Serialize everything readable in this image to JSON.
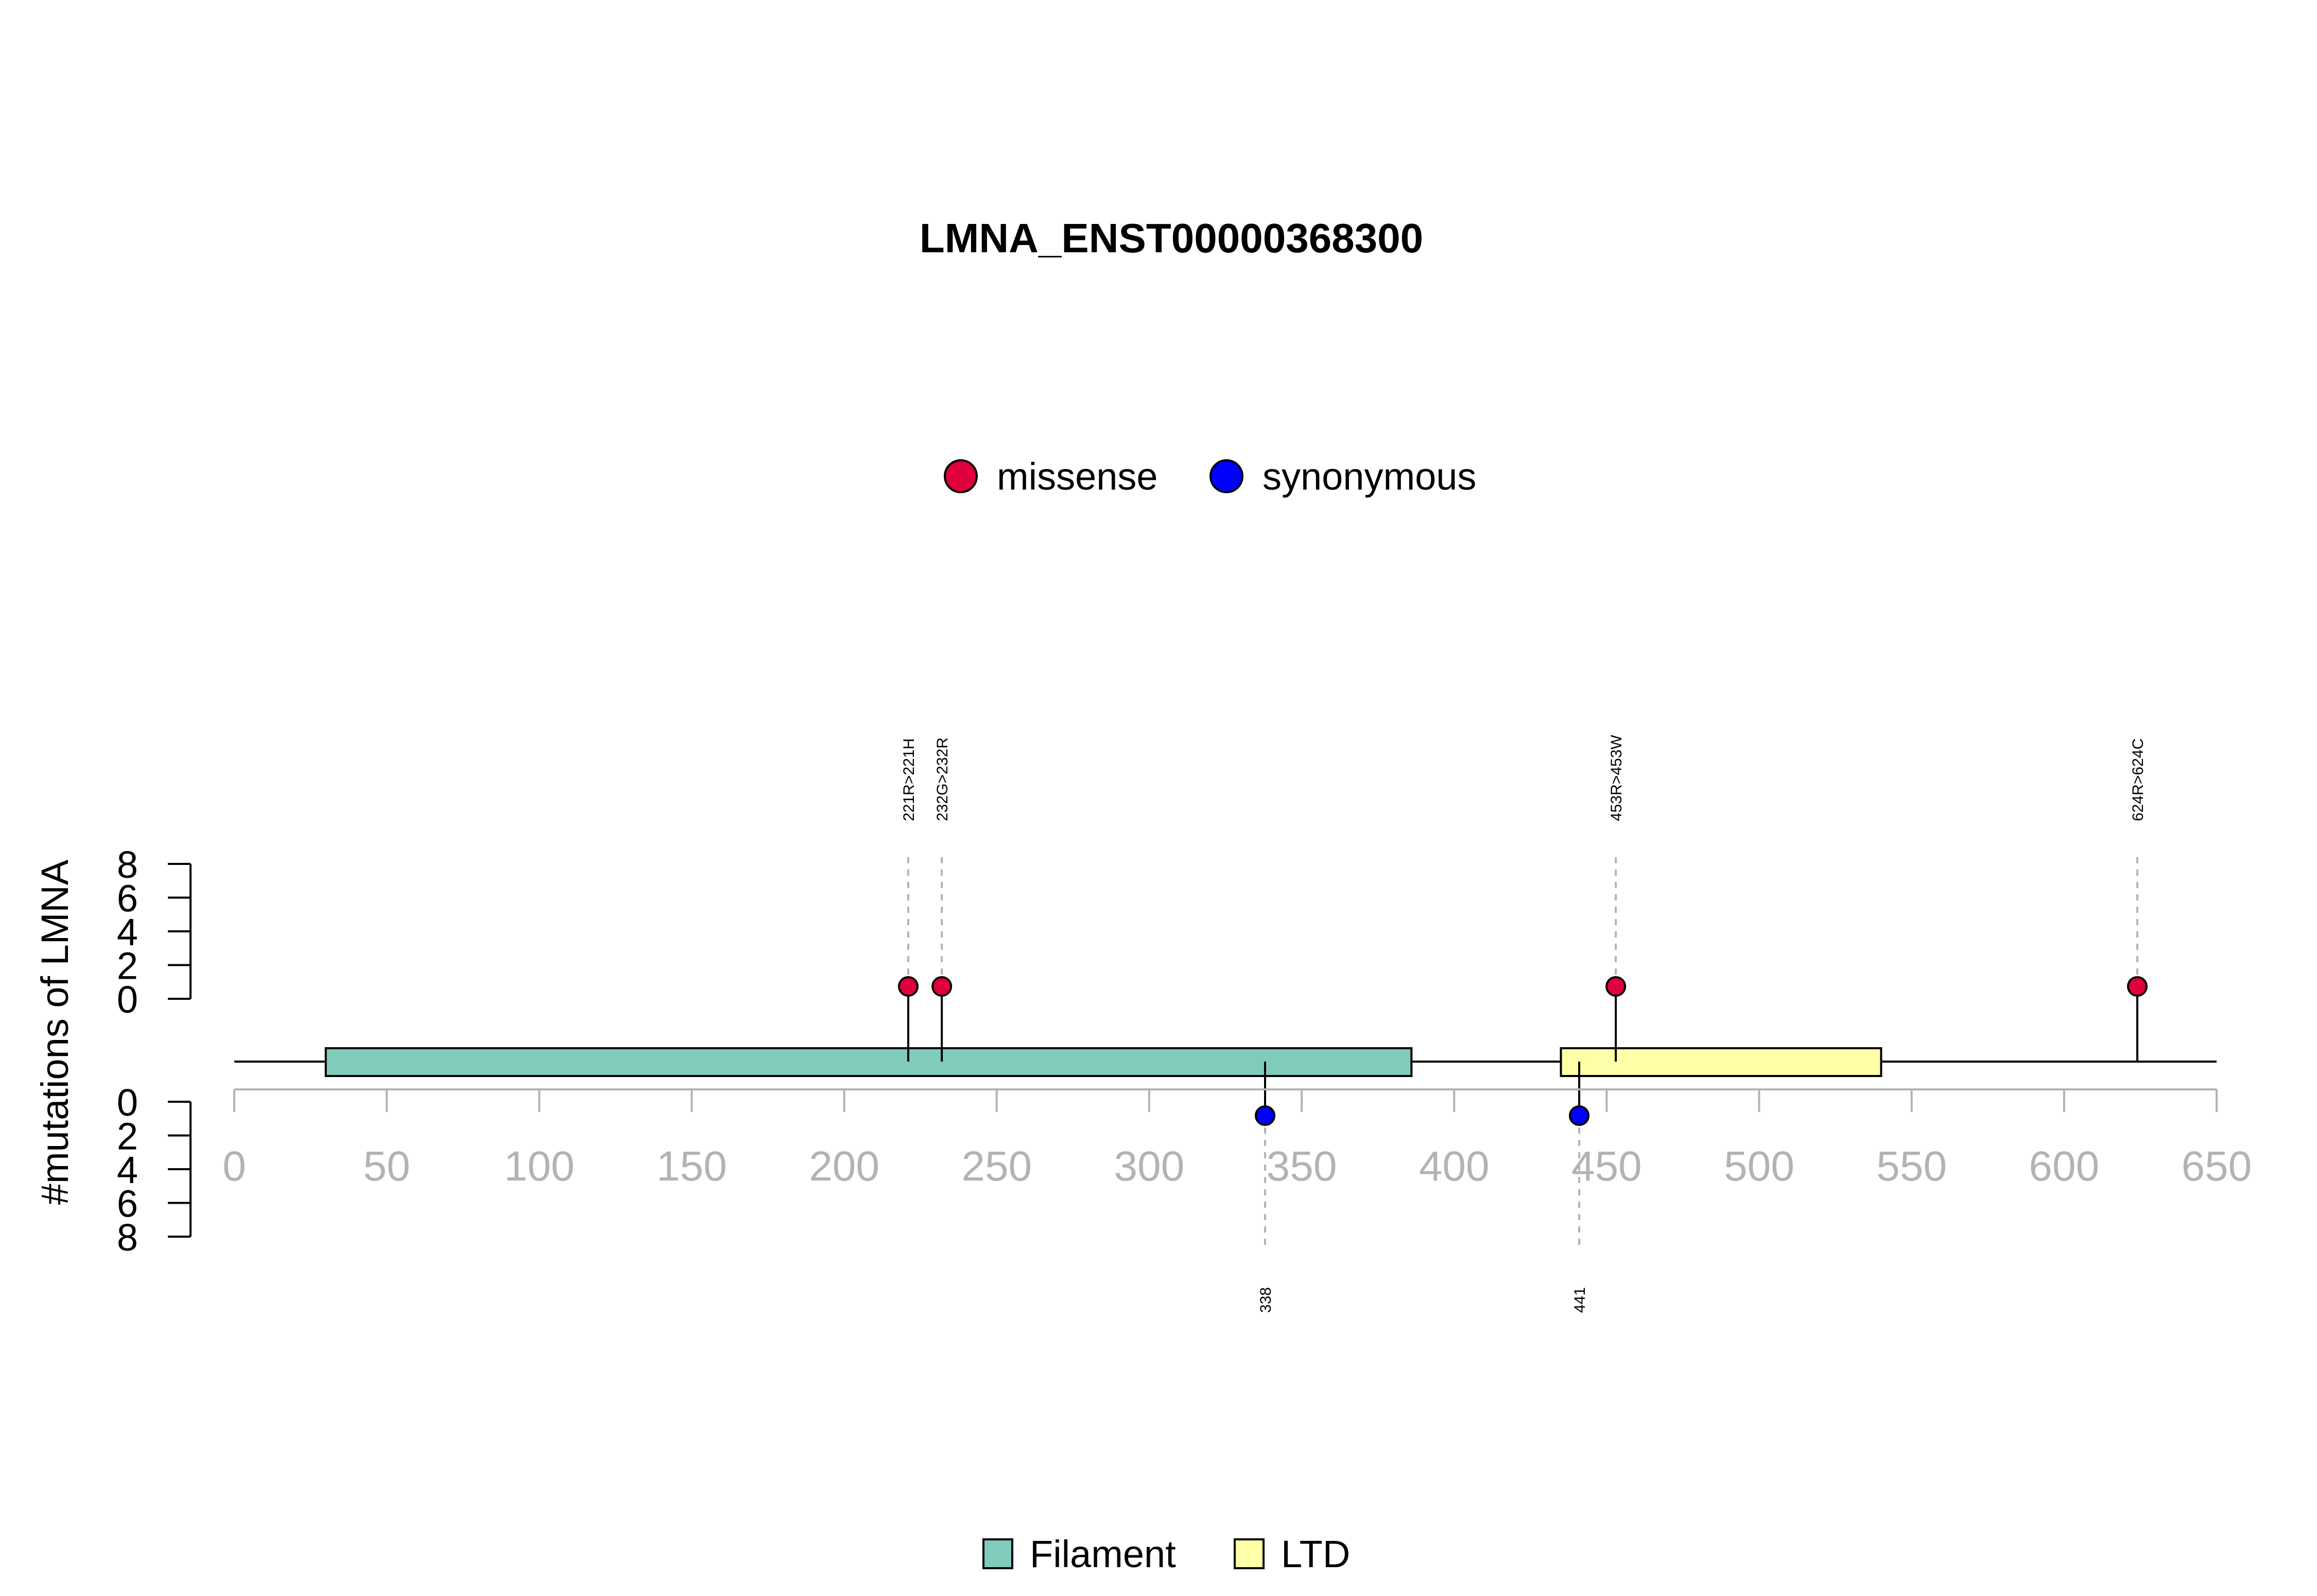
{
  "chart_data": {
    "type": "lollipop",
    "title": "LMNA_ENST00000368300",
    "ylabel": "#mutations of LMNA",
    "xlim": [
      0,
      650
    ],
    "x_ticks": [
      0,
      50,
      100,
      150,
      200,
      250,
      300,
      350,
      400,
      450,
      500,
      550,
      600,
      650
    ],
    "y_upper_ticks": [
      0,
      2,
      4,
      6,
      8
    ],
    "y_lower_ticks": [
      0,
      2,
      4,
      6,
      8
    ],
    "ylim": [
      0,
      8
    ],
    "legend_mutations": [
      {
        "name": "missense",
        "color": "#e0003c"
      },
      {
        "name": "synonymous",
        "color": "#0000ff"
      }
    ],
    "legend_domains": [
      {
        "name": "Filament",
        "color": "#80cbbb"
      },
      {
        "name": "LTD",
        "color": "#ffffa8"
      }
    ],
    "domains": [
      {
        "name": "Filament",
        "start": 30,
        "end": 386,
        "color": "#80cbbb"
      },
      {
        "name": "LTD",
        "start": 435,
        "end": 540,
        "color": "#ffffa8"
      }
    ],
    "protein_length": 650,
    "mutations": [
      {
        "position": 221,
        "label": "221R>221H",
        "type": "missense",
        "count": 1,
        "side": "up"
      },
      {
        "position": 232,
        "label": "232G>232R",
        "type": "missense",
        "count": 1,
        "side": "up"
      },
      {
        "position": 453,
        "label": "453R>453W",
        "type": "missense",
        "count": 1,
        "side": "up"
      },
      {
        "position": 624,
        "label": "624R>624C",
        "type": "missense",
        "count": 1,
        "side": "up"
      },
      {
        "position": 338,
        "label": "338",
        "type": "synonymous",
        "count": 1,
        "side": "down"
      },
      {
        "position": 441,
        "label": "441",
        "type": "synonymous",
        "count": 1,
        "side": "down"
      }
    ]
  }
}
